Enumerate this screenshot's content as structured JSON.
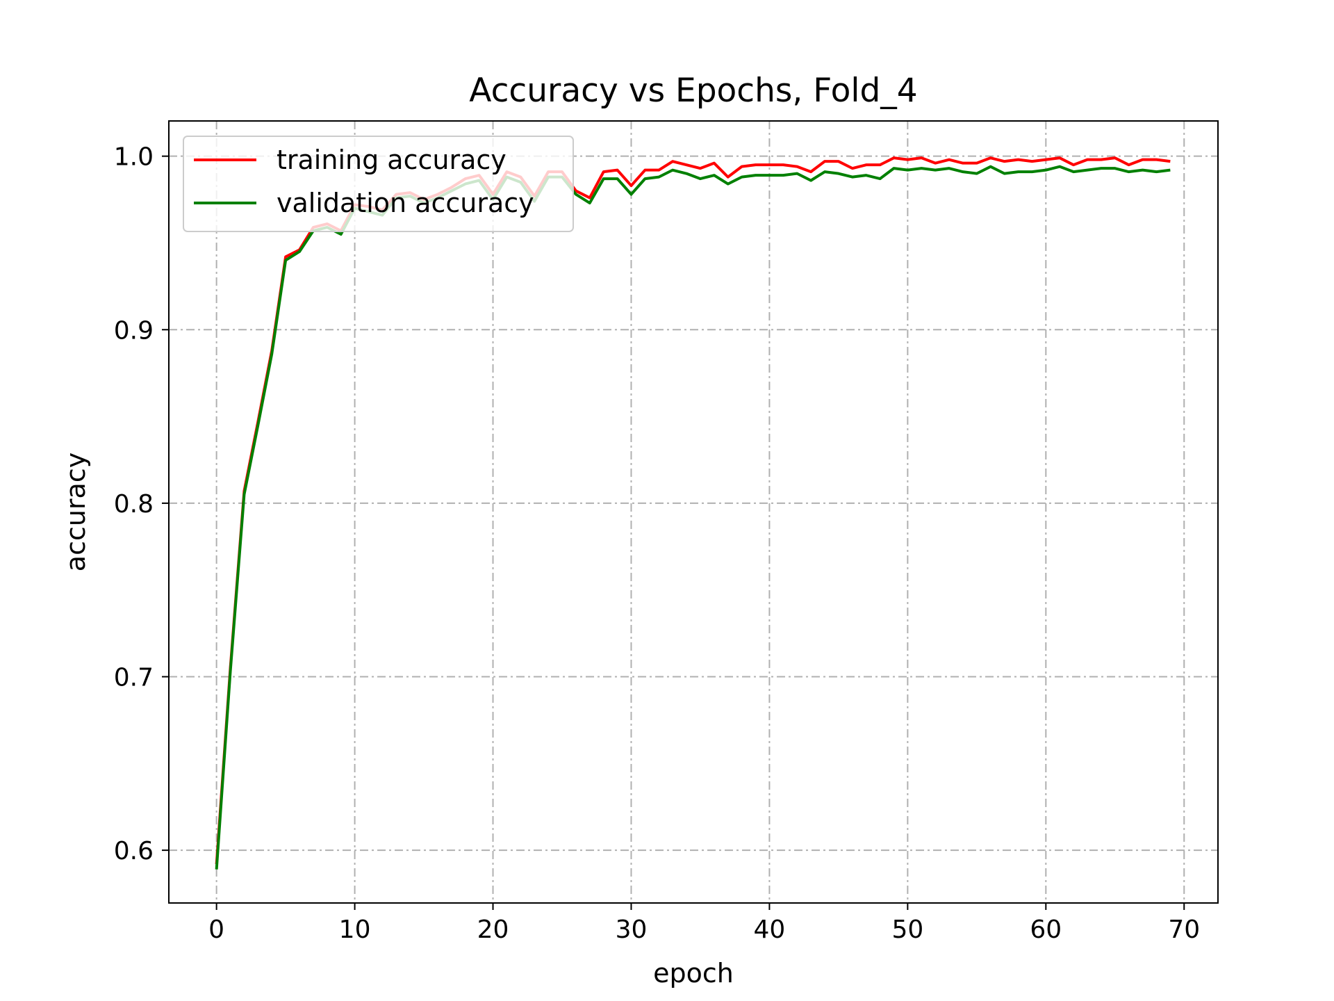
{
  "chart_data": {
    "type": "line",
    "title": "Accuracy vs Epochs, Fold_4",
    "xlabel": "epoch",
    "ylabel": "accuracy",
    "xlim": [
      -3.45,
      72.45
    ],
    "ylim": [
      0.5696,
      1.0203
    ],
    "xticks": [
      0,
      10,
      20,
      30,
      40,
      50,
      60,
      70
    ],
    "yticks": [
      0.6,
      0.7,
      0.8,
      0.9,
      1.0
    ],
    "ytick_labels": [
      "0.6",
      "0.7",
      "0.8",
      "0.9",
      "1.0"
    ],
    "grid": true,
    "legend_position": "top-left",
    "x": [
      0,
      1,
      2,
      3,
      4,
      5,
      6,
      7,
      8,
      9,
      10,
      11,
      12,
      13,
      14,
      15,
      16,
      17,
      18,
      19,
      20,
      21,
      22,
      23,
      24,
      25,
      26,
      27,
      28,
      29,
      30,
      31,
      32,
      33,
      34,
      35,
      36,
      37,
      38,
      39,
      40,
      41,
      42,
      43,
      44,
      45,
      46,
      47,
      48,
      49,
      50,
      51,
      52,
      53,
      54,
      55,
      56,
      57,
      58,
      59,
      60,
      61,
      62,
      63,
      64,
      65,
      66,
      67,
      68,
      69
    ],
    "series": [
      {
        "name": "training accuracy",
        "color": "#ff0000",
        "values": [
          0.592,
          0.705,
          0.807,
          0.847,
          0.888,
          0.942,
          0.946,
          0.959,
          0.961,
          0.957,
          0.972,
          0.971,
          0.969,
          0.978,
          0.979,
          0.975,
          0.978,
          0.982,
          0.987,
          0.989,
          0.978,
          0.991,
          0.988,
          0.977,
          0.991,
          0.991,
          0.98,
          0.976,
          0.991,
          0.992,
          0.983,
          0.992,
          0.992,
          0.997,
          0.995,
          0.993,
          0.996,
          0.988,
          0.994,
          0.995,
          0.995,
          0.995,
          0.994,
          0.991,
          0.997,
          0.997,
          0.993,
          0.995,
          0.995,
          0.999,
          0.998,
          0.999,
          0.996,
          0.998,
          0.996,
          0.996,
          0.999,
          0.997,
          0.998,
          0.997,
          0.998,
          0.999,
          0.995,
          0.998,
          0.998,
          0.999,
          0.995,
          0.998,
          0.998,
          0.997
        ]
      },
      {
        "name": "validation accuracy",
        "color": "#008000",
        "values": [
          0.589,
          0.703,
          0.805,
          0.845,
          0.886,
          0.94,
          0.945,
          0.957,
          0.959,
          0.955,
          0.97,
          0.968,
          0.966,
          0.976,
          0.977,
          0.973,
          0.976,
          0.98,
          0.984,
          0.986,
          0.975,
          0.988,
          0.985,
          0.974,
          0.988,
          0.988,
          0.978,
          0.973,
          0.987,
          0.987,
          0.978,
          0.987,
          0.988,
          0.992,
          0.99,
          0.987,
          0.989,
          0.984,
          0.988,
          0.989,
          0.989,
          0.989,
          0.99,
          0.986,
          0.991,
          0.99,
          0.988,
          0.989,
          0.987,
          0.993,
          0.992,
          0.993,
          0.992,
          0.993,
          0.991,
          0.99,
          0.994,
          0.99,
          0.991,
          0.991,
          0.992,
          0.994,
          0.991,
          0.992,
          0.993,
          0.993,
          0.991,
          0.992,
          0.991,
          0.992
        ]
      }
    ]
  }
}
